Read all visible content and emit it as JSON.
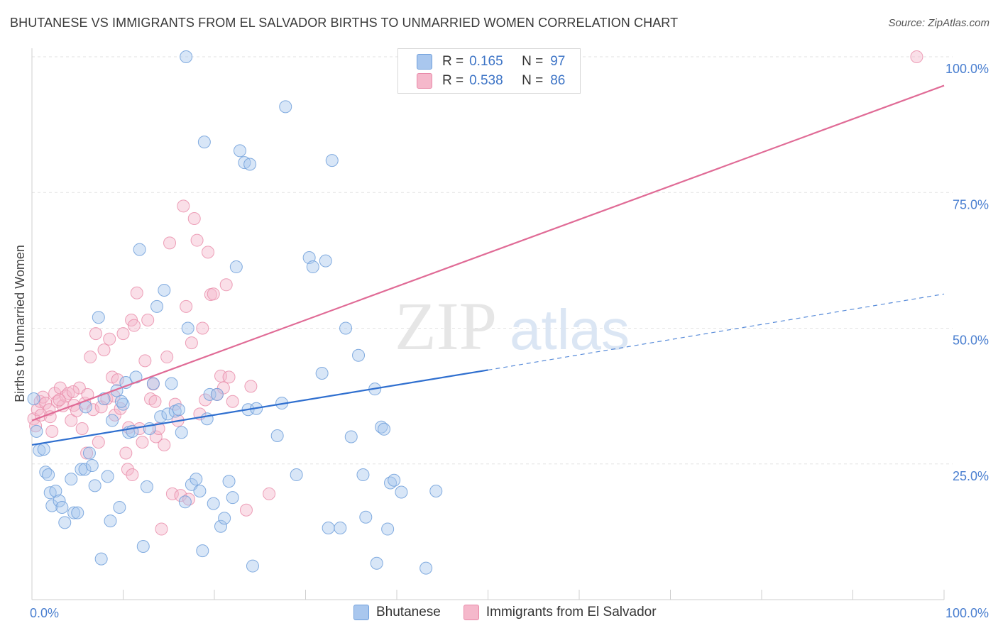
{
  "header": {
    "title": "BHUTANESE VS IMMIGRANTS FROM EL SALVADOR BIRTHS TO UNMARRIED WOMEN CORRELATION CHART",
    "source": "Source: ZipAtlas.com"
  },
  "legend": {
    "series": [
      {
        "r_label": "R =",
        "r_value": "0.165",
        "n_label": "N =",
        "n_value": "97"
      },
      {
        "r_label": "R =",
        "r_value": "0.538",
        "n_label": "N =",
        "n_value": "86"
      }
    ]
  },
  "bottom_legend": {
    "items": [
      "Bhutanese",
      "Immigrants from El Salvador"
    ]
  },
  "watermark": {
    "zip": "ZIP",
    "atlas": "atlas"
  },
  "colors": {
    "blue_fill": "#a9c7ee",
    "blue_stroke": "#6f9fdb",
    "blue_line": "#2f6fcf",
    "pink_fill": "#f5b8cb",
    "pink_stroke": "#e889a8",
    "pink_line": "#e06b96",
    "axis_text": "#4a7fd0",
    "grid": "#e2e2e2"
  },
  "chart_data": {
    "type": "scatter",
    "title": "BHUTANESE VS IMMIGRANTS FROM EL SALVADOR BIRTHS TO UNMARRIED WOMEN CORRELATION CHART",
    "xlabel": "",
    "ylabel": "Births to Unmarried Women",
    "xlim": [
      0,
      100
    ],
    "ylim": [
      0,
      100
    ],
    "x_tick_labels": [
      "0.0%",
      "100.0%"
    ],
    "y_tick_labels": [
      "100.0%",
      "75.0%",
      "50.0%",
      "25.0%"
    ],
    "y_ticks": [
      100,
      75,
      50,
      25
    ],
    "grid": true,
    "series": [
      {
        "name": "Bhutanese",
        "r": 0.165,
        "n": 97,
        "trend": {
          "x0": 0,
          "y0": 28.5,
          "x1": 50,
          "y1": 42.3,
          "dashed_to_x": 100,
          "dashed_to_y": 56.3
        },
        "points": [
          [
            0.2,
            37.0
          ],
          [
            0.5,
            31.0
          ],
          [
            0.8,
            27.5
          ],
          [
            1.3,
            27.7
          ],
          [
            1.5,
            23.5
          ],
          [
            1.8,
            23.0
          ],
          [
            2.0,
            19.7
          ],
          [
            2.2,
            17.3
          ],
          [
            2.6,
            20.0
          ],
          [
            3.0,
            18.2
          ],
          [
            3.3,
            17.0
          ],
          [
            3.6,
            14.2
          ],
          [
            4.3,
            22.2
          ],
          [
            4.6,
            16.0
          ],
          [
            5.0,
            16.0
          ],
          [
            5.4,
            24.0
          ],
          [
            5.8,
            24.0
          ],
          [
            6.3,
            27.0
          ],
          [
            6.6,
            24.7
          ],
          [
            6.9,
            21.0
          ],
          [
            7.3,
            52.0
          ],
          [
            7.6,
            7.5
          ],
          [
            7.9,
            37.0
          ],
          [
            8.3,
            22.7
          ],
          [
            8.6,
            14.5
          ],
          [
            8.8,
            33.0
          ],
          [
            9.3,
            38.5
          ],
          [
            9.6,
            17.0
          ],
          [
            10.0,
            36.0
          ],
          [
            10.3,
            40.0
          ],
          [
            10.6,
            30.8
          ],
          [
            11.0,
            31.0
          ],
          [
            11.4,
            41.0
          ],
          [
            11.8,
            64.5
          ],
          [
            12.2,
            9.8
          ],
          [
            12.6,
            20.8
          ],
          [
            12.9,
            31.5
          ],
          [
            13.3,
            39.8
          ],
          [
            13.7,
            54.0
          ],
          [
            14.1,
            33.7
          ],
          [
            14.5,
            57.0
          ],
          [
            14.9,
            34.2
          ],
          [
            15.3,
            39.8
          ],
          [
            15.7,
            34.7
          ],
          [
            16.1,
            35.0
          ],
          [
            16.4,
            30.8
          ],
          [
            16.8,
            18.0
          ],
          [
            17.1,
            50.0
          ],
          [
            16.9,
            100.0
          ],
          [
            17.5,
            21.2
          ],
          [
            18.0,
            22.2
          ],
          [
            18.4,
            20.0
          ],
          [
            18.7,
            9.0
          ],
          [
            19.2,
            33.3
          ],
          [
            18.9,
            84.3
          ],
          [
            19.5,
            37.8
          ],
          [
            19.9,
            17.7
          ],
          [
            20.3,
            37.8
          ],
          [
            20.7,
            13.5
          ],
          [
            21.1,
            15.0
          ],
          [
            21.6,
            21.8
          ],
          [
            22.0,
            18.8
          ],
          [
            22.4,
            61.3
          ],
          [
            22.8,
            82.7
          ],
          [
            23.3,
            80.5
          ],
          [
            23.7,
            35.0
          ],
          [
            23.9,
            80.2
          ],
          [
            24.2,
            6.2
          ],
          [
            24.6,
            35.2
          ],
          [
            26.9,
            30.2
          ],
          [
            27.4,
            36.2
          ],
          [
            27.8,
            90.8
          ],
          [
            29.0,
            23.0
          ],
          [
            30.4,
            63.0
          ],
          [
            30.8,
            61.3
          ],
          [
            31.8,
            41.7
          ],
          [
            32.2,
            62.4
          ],
          [
            32.5,
            13.2
          ],
          [
            32.9,
            80.9
          ],
          [
            33.8,
            13.2
          ],
          [
            34.4,
            50.0
          ],
          [
            35.0,
            30.0
          ],
          [
            35.8,
            45.0
          ],
          [
            36.3,
            23.0
          ],
          [
            36.6,
            15.2
          ],
          [
            37.6,
            38.8
          ],
          [
            37.8,
            6.7
          ],
          [
            38.3,
            31.8
          ],
          [
            38.6,
            31.4
          ],
          [
            39.0,
            13.0
          ],
          [
            39.3,
            21.5
          ],
          [
            39.7,
            22.0
          ],
          [
            40.5,
            19.8
          ],
          [
            43.2,
            5.8
          ],
          [
            44.3,
            20.0
          ],
          [
            9.8,
            36.5
          ],
          [
            5.9,
            35.5
          ]
        ]
      },
      {
        "name": "Immigrants from El Salvador",
        "r": 0.538,
        "n": 86,
        "trend": {
          "x0": 0,
          "y0": 33.0,
          "x1": 100,
          "y1": 94.7
        },
        "points": [
          [
            0.2,
            33.3
          ],
          [
            0.4,
            32.0
          ],
          [
            0.6,
            35.0
          ],
          [
            0.9,
            36.5
          ],
          [
            1.2,
            37.3
          ],
          [
            1.5,
            36.2
          ],
          [
            1.9,
            35.0
          ],
          [
            2.2,
            31.0
          ],
          [
            2.5,
            38.0
          ],
          [
            2.8,
            36.5
          ],
          [
            3.1,
            39.0
          ],
          [
            3.4,
            35.7
          ],
          [
            3.7,
            37.5
          ],
          [
            4.0,
            38.0
          ],
          [
            4.3,
            33.0
          ],
          [
            4.6,
            35.8
          ],
          [
            4.9,
            34.8
          ],
          [
            5.2,
            39.0
          ],
          [
            5.5,
            31.5
          ],
          [
            5.8,
            36.2
          ],
          [
            6.1,
            37.8
          ],
          [
            6.4,
            44.7
          ],
          [
            6.7,
            35.0
          ],
          [
            7.0,
            49.0
          ],
          [
            7.3,
            29.0
          ],
          [
            7.6,
            35.5
          ],
          [
            7.9,
            46.0
          ],
          [
            8.2,
            37.0
          ],
          [
            8.5,
            48.0
          ],
          [
            8.8,
            41.0
          ],
          [
            9.1,
            34.0
          ],
          [
            9.4,
            40.5
          ],
          [
            9.7,
            35.2
          ],
          [
            10.0,
            49.0
          ],
          [
            10.3,
            27.0
          ],
          [
            10.6,
            31.7
          ],
          [
            10.9,
            51.5
          ],
          [
            11.2,
            50.5
          ],
          [
            11.5,
            56.5
          ],
          [
            11.8,
            31.5
          ],
          [
            12.1,
            29.0
          ],
          [
            12.4,
            44.0
          ],
          [
            12.7,
            51.5
          ],
          [
            13.0,
            37.0
          ],
          [
            13.3,
            39.7
          ],
          [
            13.6,
            30.0
          ],
          [
            13.9,
            31.5
          ],
          [
            14.2,
            13.0
          ],
          [
            14.5,
            28.5
          ],
          [
            14.8,
            44.7
          ],
          [
            15.1,
            65.7
          ],
          [
            15.4,
            19.5
          ],
          [
            15.7,
            36.0
          ],
          [
            16.0,
            33.0
          ],
          [
            16.3,
            19.2
          ],
          [
            16.6,
            72.5
          ],
          [
            16.9,
            54.0
          ],
          [
            17.2,
            18.5
          ],
          [
            17.5,
            47.3
          ],
          [
            17.8,
            70.2
          ],
          [
            18.1,
            66.2
          ],
          [
            18.4,
            34.2
          ],
          [
            18.7,
            50.0
          ],
          [
            19.0,
            36.8
          ],
          [
            19.3,
            64.0
          ],
          [
            19.6,
            56.2
          ],
          [
            19.9,
            56.3
          ],
          [
            20.3,
            37.8
          ],
          [
            20.7,
            41.2
          ],
          [
            21.0,
            39.0
          ],
          [
            21.3,
            58.0
          ],
          [
            21.6,
            41.0
          ],
          [
            22.0,
            36.5
          ],
          [
            23.5,
            16.5
          ],
          [
            24.0,
            39.3
          ],
          [
            26.0,
            19.5
          ],
          [
            97.0,
            100.0
          ],
          [
            1.0,
            34.0
          ],
          [
            2.0,
            33.7
          ],
          [
            3.0,
            36.8
          ],
          [
            4.5,
            38.3
          ],
          [
            6.0,
            27.0
          ],
          [
            9.0,
            37.5
          ],
          [
            10.5,
            24.0
          ],
          [
            11.0,
            23.0
          ],
          [
            13.5,
            36.5
          ]
        ]
      }
    ]
  }
}
